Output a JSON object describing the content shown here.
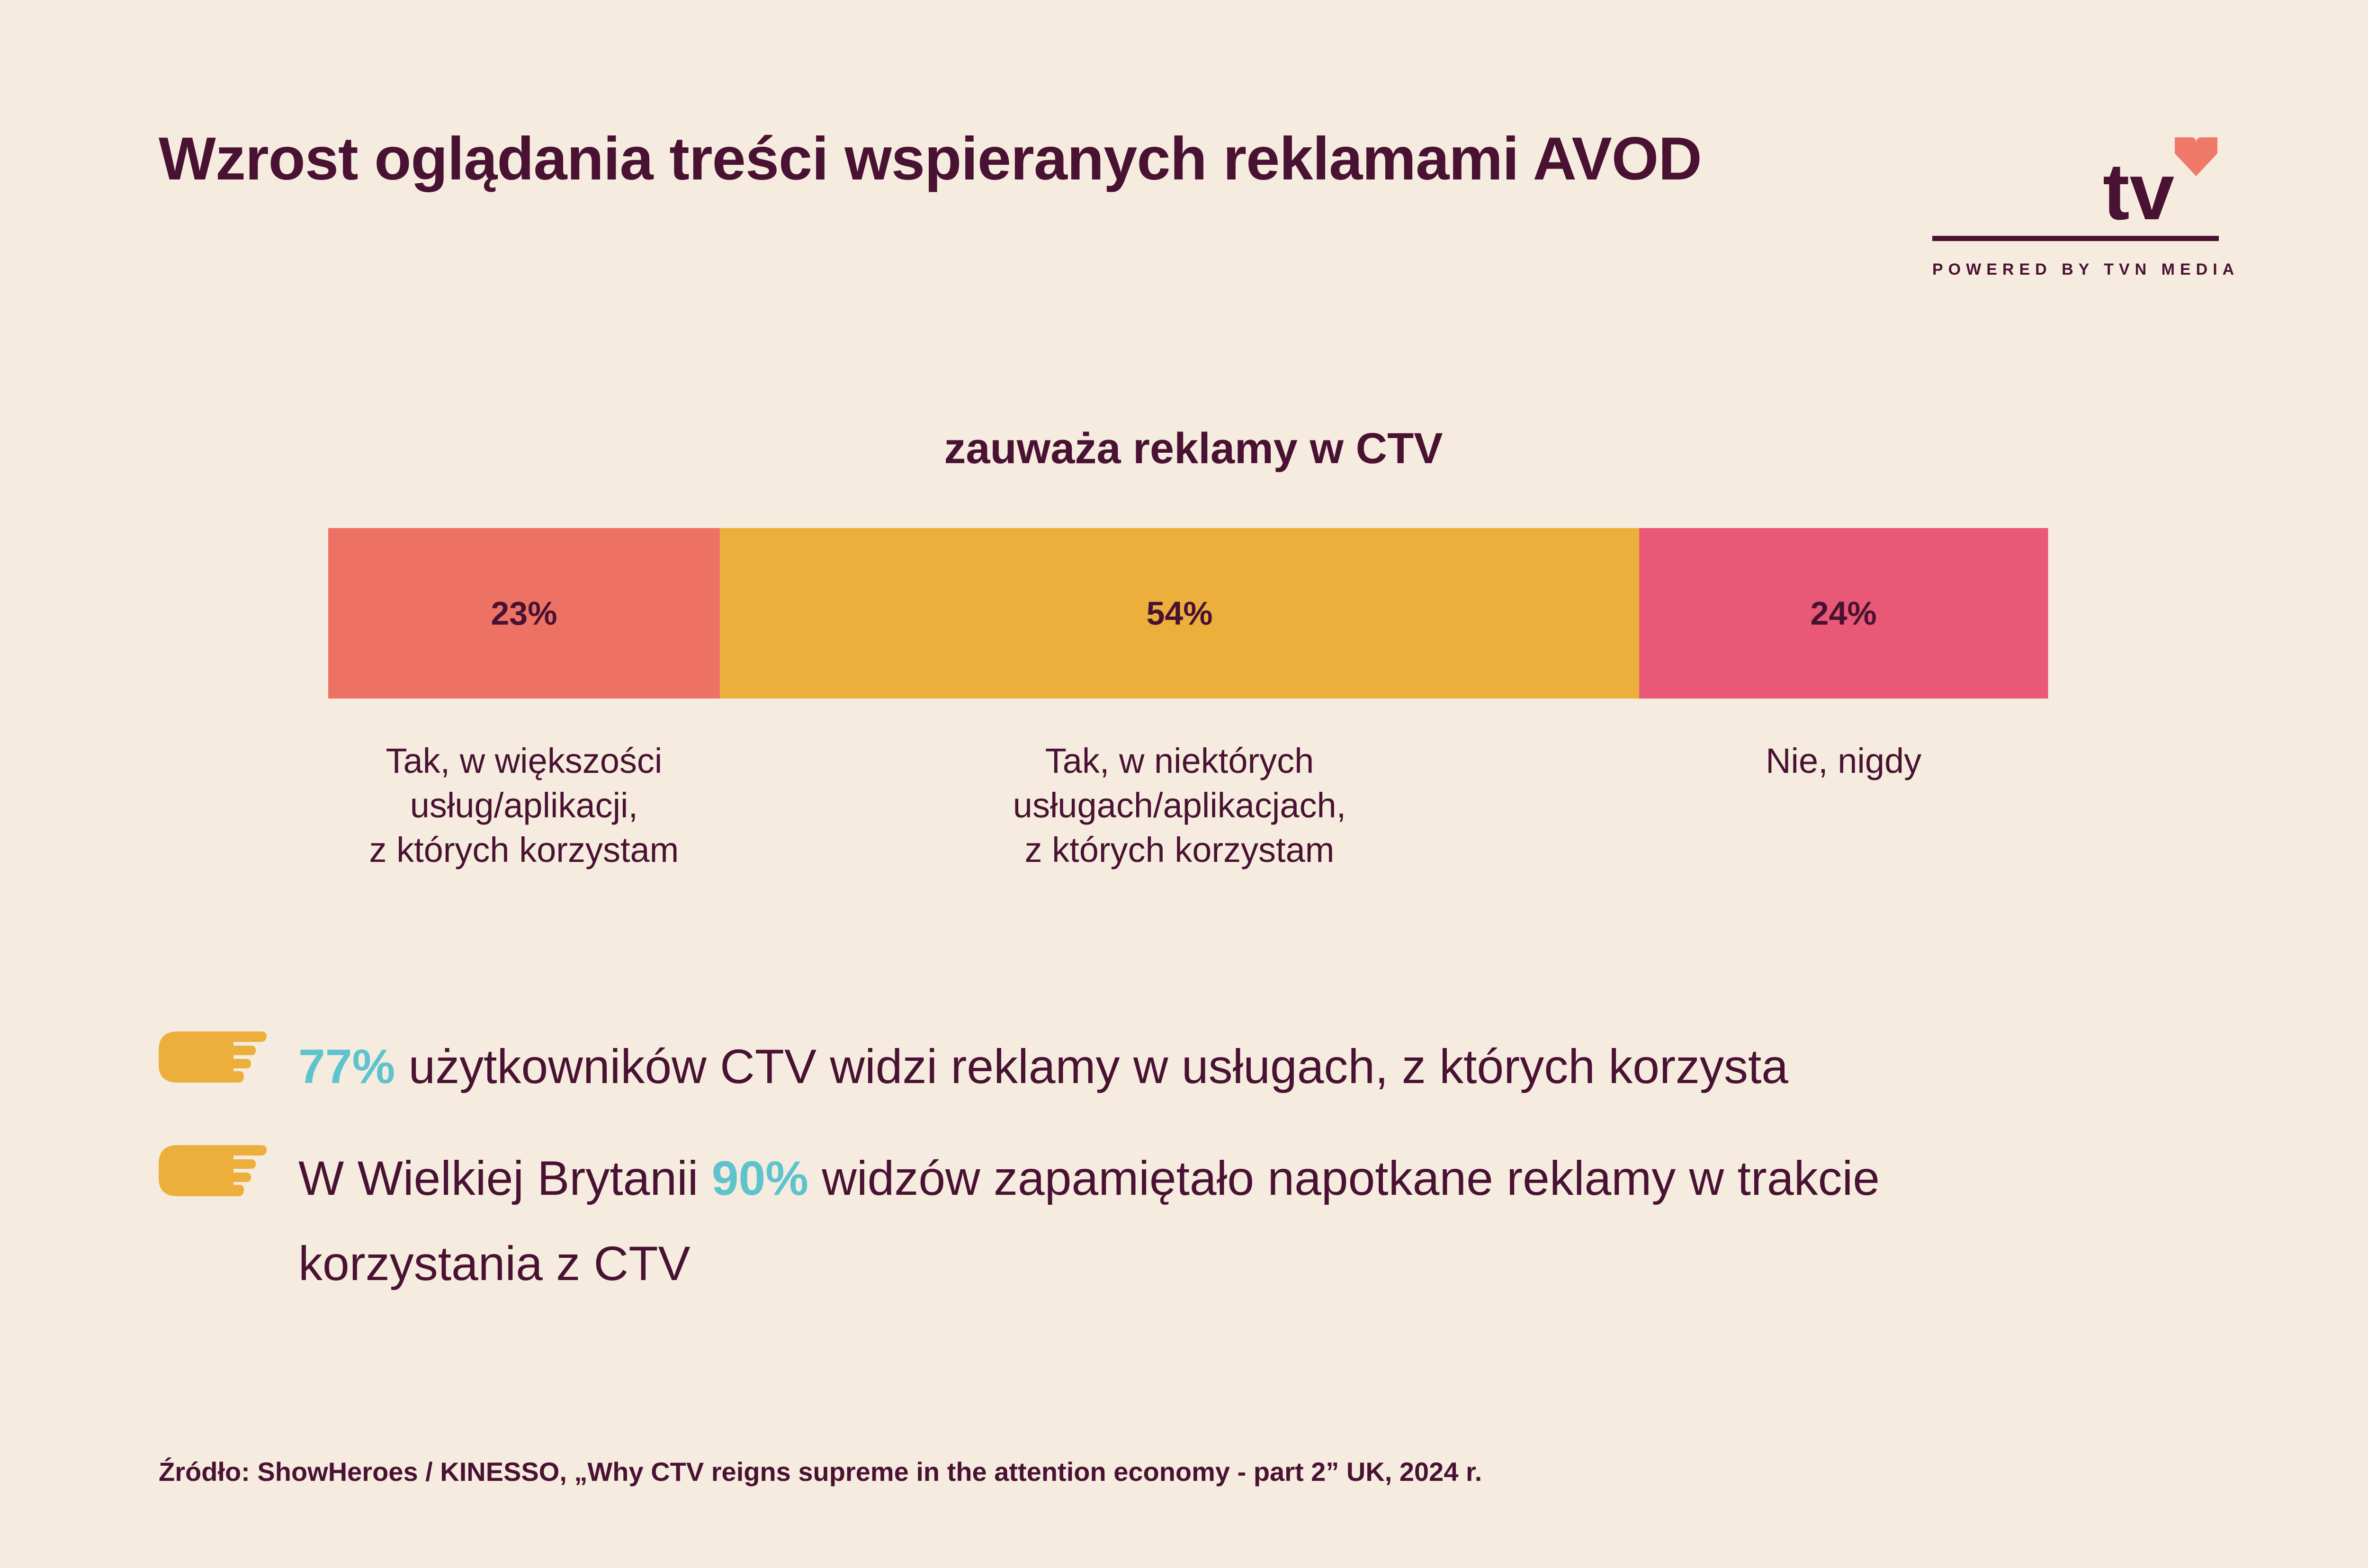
{
  "title": "Wzrost oglądania treści wspieranych reklamami AVOD",
  "logo": {
    "text": "tv",
    "subtitle": "POWERED BY TVN MEDIA",
    "heart_color": "#F07A6A"
  },
  "chart_data": {
    "type": "bar",
    "orientation": "horizontal-stacked",
    "title": "zauważa reklamy w CTV",
    "categories": [
      "Tak, w większości\nusług/aplikacji,\nz których korzystam",
      "Tak, w niektórych\nusługach/aplikacjach,\nz których korzystam",
      "Nie, nigdy"
    ],
    "values": [
      23,
      54,
      24
    ],
    "value_labels": [
      "23%",
      "54%",
      "24%"
    ],
    "colors": [
      "#EE7264",
      "#EDAF3B",
      "#E95876"
    ],
    "grid": false,
    "legend": "none"
  },
  "bullets": [
    {
      "highlight": "77%",
      "before": "",
      "after": " użytkowników CTV widzi reklamy w usługach, z których korzysta"
    },
    {
      "highlight": "90%",
      "before": "W Wielkiej Brytanii ",
      "after": " widzów zapamiętało napotkane reklamy w trakcie korzystania z CTV"
    }
  ],
  "bullet_icon": "pointing-hand-icon",
  "colors": {
    "background": "#F5ECDF",
    "text": "#4A1232",
    "highlight": "#5FC3CD",
    "icon": "#EDAF3B"
  },
  "source": "Źródło: ShowHeroes / KINESSO, „Why CTV reigns supreme in the attention economy - part 2” UK, 2024 r."
}
